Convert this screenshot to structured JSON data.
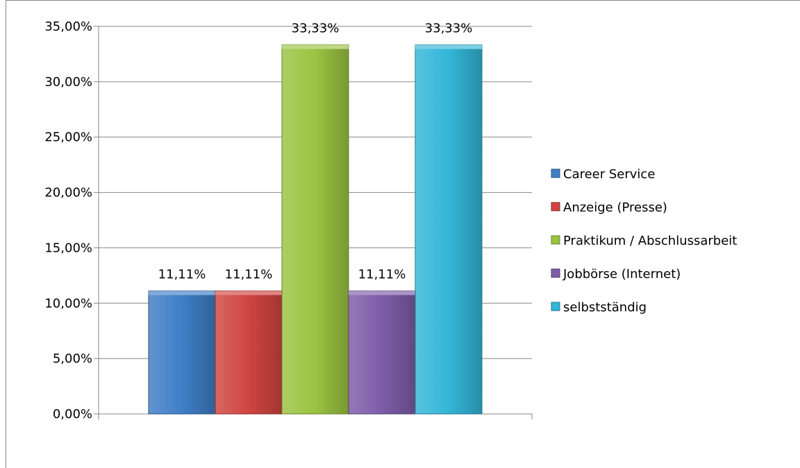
{
  "chart_data": {
    "type": "bar",
    "title": "",
    "xlabel": "",
    "ylabel": "",
    "ylim": [
      0,
      35
    ],
    "ytick_step": 5,
    "ytick_labels": [
      "0,00%",
      "5,00%",
      "10,00%",
      "15,00%",
      "20,00%",
      "25,00%",
      "30,00%",
      "35,00%"
    ],
    "grid": true,
    "legend_position": "right",
    "series": [
      {
        "name": "Career Service",
        "value": 11.11,
        "label": "11,11%",
        "color": "#3f7ec6"
      },
      {
        "name": "Anzeige (Presse)",
        "value": 11.11,
        "label": "11,11%",
        "color": "#d04441"
      },
      {
        "name": "Praktikum / Abschlussarbeit",
        "value": 33.33,
        "label": "33,33%",
        "color": "#9bc342"
      },
      {
        "name": "Jobbörse (Internet)",
        "value": 11.11,
        "label": "11,11%",
        "color": "#7d5ca8"
      },
      {
        "name": "selbstständig",
        "value": 33.33,
        "label": "33,33%",
        "color": "#33b6d8"
      }
    ]
  }
}
